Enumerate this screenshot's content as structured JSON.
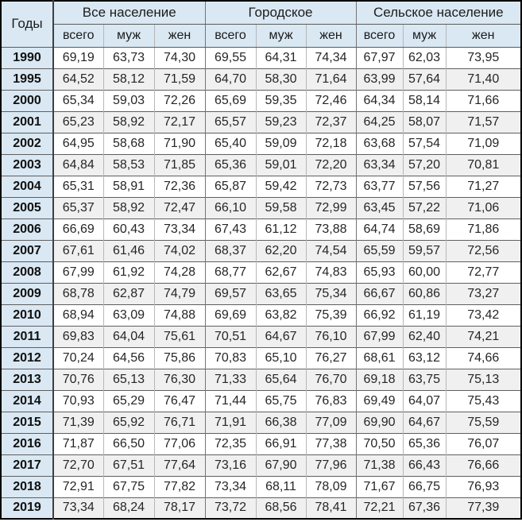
{
  "chart_data": {
    "type": "table",
    "description": "Life expectancy at birth in years, Russia, by population group and sex",
    "year_header": "Годы",
    "group_headers": [
      "Все население",
      "Городское",
      "Сельское население"
    ],
    "sub_headers": [
      "всего",
      "муж",
      "жен"
    ],
    "rows": [
      {
        "year": "1990",
        "values": [
          "69,19",
          "63,73",
          "74,30",
          "69,55",
          "64,31",
          "74,34",
          "67,97",
          "62,03",
          "73,95"
        ]
      },
      {
        "year": "1995",
        "values": [
          "64,52",
          "58,12",
          "71,59",
          "64,70",
          "58,30",
          "71,64",
          "63,99",
          "57,64",
          "71,40"
        ]
      },
      {
        "year": "2000",
        "values": [
          "65,34",
          "59,03",
          "72,26",
          "65,69",
          "59,35",
          "72,46",
          "64,34",
          "58,14",
          "71,66"
        ]
      },
      {
        "year": "2001",
        "values": [
          "65,23",
          "58,92",
          "72,17",
          "65,57",
          "59,23",
          "72,37",
          "64,25",
          "58,07",
          "71,57"
        ]
      },
      {
        "year": "2002",
        "values": [
          "64,95",
          "58,68",
          "71,90",
          "65,40",
          "59,09",
          "72,18",
          "63,68",
          "57,54",
          "71,09"
        ]
      },
      {
        "year": "2003",
        "values": [
          "64,84",
          "58,53",
          "71,85",
          "65,36",
          "59,01",
          "72,20",
          "63,34",
          "57,20",
          "70,81"
        ]
      },
      {
        "year": "2004",
        "values": [
          "65,31",
          "58,91",
          "72,36",
          "65,87",
          "59,42",
          "72,73",
          "63,77",
          "57,56",
          "71,27"
        ]
      },
      {
        "year": "2005",
        "values": [
          "65,37",
          "58,92",
          "72,47",
          "66,10",
          "59,58",
          "72,99",
          "63,45",
          "57,22",
          "71,06"
        ]
      },
      {
        "year": "2006",
        "values": [
          "66,69",
          "60,43",
          "73,34",
          "67,43",
          "61,12",
          "73,88",
          "64,74",
          "58,69",
          "71,86"
        ]
      },
      {
        "year": "2007",
        "values": [
          "67,61",
          "61,46",
          "74,02",
          "68,37",
          "62,20",
          "74,54",
          "65,59",
          "59,57",
          "72,56"
        ]
      },
      {
        "year": "2008",
        "values": [
          "67,99",
          "61,92",
          "74,28",
          "68,77",
          "62,67",
          "74,83",
          "65,93",
          "60,00",
          "72,77"
        ]
      },
      {
        "year": "2009",
        "values": [
          "68,78",
          "62,87",
          "74,79",
          "69,57",
          "63,65",
          "75,34",
          "66,67",
          "60,86",
          "73,27"
        ]
      },
      {
        "year": "2010",
        "values": [
          "68,94",
          "63,09",
          "74,88",
          "69,69",
          "63,82",
          "75,39",
          "66,92",
          "61,19",
          "73,42"
        ]
      },
      {
        "year": "2011",
        "values": [
          "69,83",
          "64,04",
          "75,61",
          "70,51",
          "64,67",
          "76,10",
          "67,99",
          "62,40",
          "74,21"
        ]
      },
      {
        "year": "2012",
        "values": [
          "70,24",
          "64,56",
          "75,86",
          "70,83",
          "65,10",
          "76,27",
          "68,61",
          "63,12",
          "74,66"
        ]
      },
      {
        "year": "2013",
        "values": [
          "70,76",
          "65,13",
          "76,30",
          "71,33",
          "65,64",
          "76,70",
          "69,18",
          "63,75",
          "75,13"
        ]
      },
      {
        "year": "2014",
        "values": [
          "70,93",
          "65,29",
          "76,47",
          "71,44",
          "65,75",
          "76,83",
          "69,49",
          "64,07",
          "75,43"
        ]
      },
      {
        "year": "2015",
        "values": [
          "71,39",
          "65,92",
          "76,71",
          "71,91",
          "66,38",
          "77,09",
          "69,90",
          "64,67",
          "75,59"
        ]
      },
      {
        "year": "2016",
        "values": [
          "71,87",
          "66,50",
          "77,06",
          "72,35",
          "66,91",
          "77,38",
          "70,50",
          "65,36",
          "76,07"
        ]
      },
      {
        "year": "2017",
        "values": [
          "72,70",
          "67,51",
          "77,64",
          "73,16",
          "67,90",
          "77,96",
          "71,38",
          "66,43",
          "76,66"
        ]
      },
      {
        "year": "2018",
        "values": [
          "72,91",
          "67,75",
          "77,82",
          "73,34",
          "68,11",
          "78,09",
          "71,67",
          "66,75",
          "76,93"
        ]
      },
      {
        "year": "2019",
        "values": [
          "73,34",
          "68,24",
          "78,17",
          "73,72",
          "68,56",
          "78,41",
          "72,21",
          "67,36",
          "77,39"
        ]
      }
    ]
  },
  "colors": {
    "header_fill": "#d9e8f3",
    "alt_row_fill": "#f0f0f0",
    "row_fill": "#ffffff",
    "outer_border": "#000000",
    "row_border": "#5f5f5f",
    "column_border": "#b7b7b7",
    "text": "#262626"
  }
}
